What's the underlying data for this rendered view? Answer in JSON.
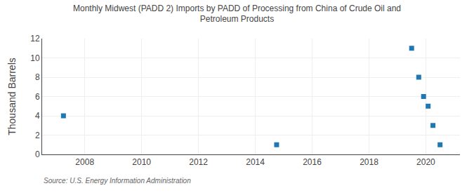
{
  "chart_data": {
    "type": "scatter",
    "title": "Monthly Midwest (PADD 2) Imports by PADD of Processing from China of Crude Oil and\nPetroleum Products",
    "y_label": "Thousand Barrels",
    "annotations": [
      "Source: U.S. Energy Information Administration"
    ],
    "x": [
      2007.25,
      2014.75,
      2019.5,
      2019.75,
      2019.92,
      2020.08,
      2020.25,
      2020.5
    ],
    "values": [
      4,
      1,
      11,
      8,
      6,
      5,
      3,
      1
    ],
    "marker": "square",
    "xlim": [
      2006.5,
      2021.2
    ],
    "ylim": [
      0,
      12
    ],
    "xticks": [
      2008,
      2010,
      2012,
      2014,
      2016,
      2018,
      2020
    ],
    "yticks": [
      0,
      2,
      4,
      6,
      8,
      10,
      12
    ],
    "grid": true
  }
}
